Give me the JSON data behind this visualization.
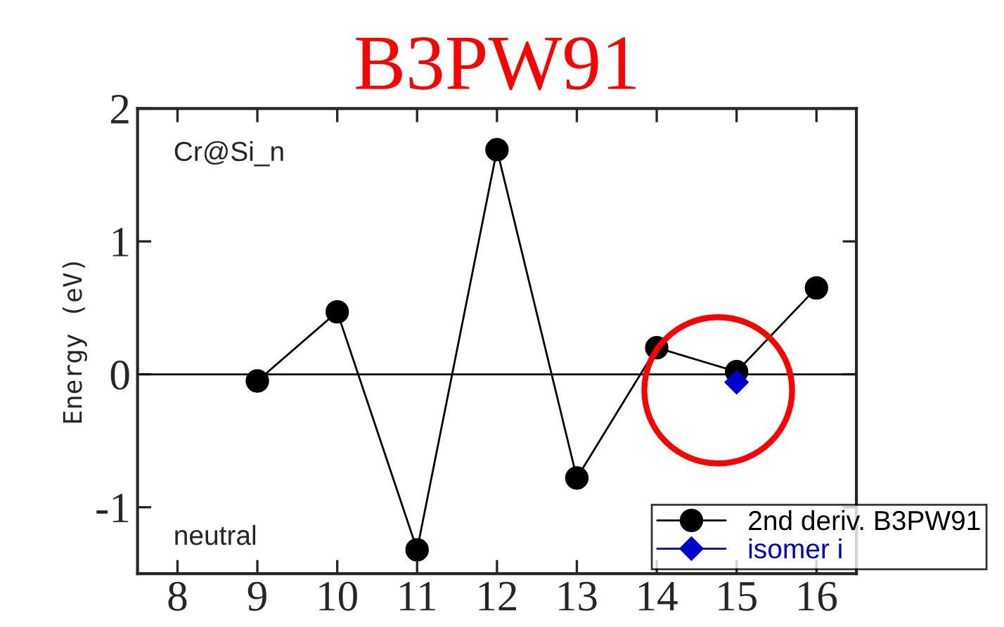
{
  "chart_data": {
    "type": "line",
    "title": "B3PW91",
    "ylabel": "Energy (eV)",
    "x": [
      9,
      10,
      11,
      12,
      13,
      14,
      15,
      16
    ],
    "series": [
      {
        "name": "2nd deriv. B3PW91",
        "color": "#000000",
        "values": [
          -0.05,
          0.47,
          -1.32,
          1.69,
          -0.78,
          0.2,
          0.02,
          0.65
        ],
        "marker": "circle"
      },
      {
        "name": "isomer i",
        "color": "#0000cc",
        "x": [
          15
        ],
        "values": [
          -0.06
        ],
        "marker": "diamond"
      }
    ],
    "xlim": [
      7.5,
      16.5
    ],
    "xticks": [
      8,
      9,
      10,
      11,
      12,
      13,
      14,
      15,
      16
    ],
    "ylim": [
      -1.5,
      2
    ],
    "yticks": [
      -1,
      0,
      1,
      2
    ],
    "ref_lines": [
      {
        "axis": "y",
        "value": 0,
        "color": "#000000"
      }
    ],
    "annotations": [
      "Cr@Si_n",
      "neutral"
    ],
    "legend": "bottom right",
    "grid": false,
    "line_style": "solid"
  }
}
